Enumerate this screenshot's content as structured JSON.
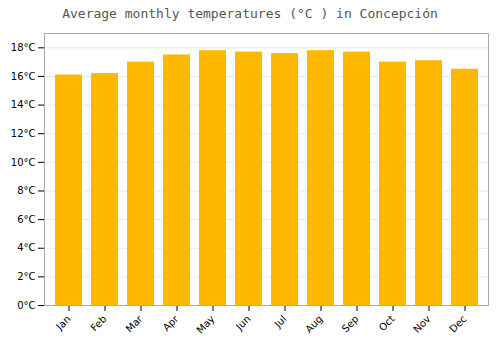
{
  "chart_data": {
    "type": "bar",
    "title": "Average monthly temperatures (°C ) in Concepción",
    "categories": [
      "Jan",
      "Feb",
      "Mar",
      "Apr",
      "May",
      "Jun",
      "Jul",
      "Aug",
      "Sep",
      "Oct",
      "Nov",
      "Dec"
    ],
    "values": [
      16.1,
      16.2,
      17.0,
      17.5,
      17.8,
      17.7,
      17.6,
      17.8,
      17.7,
      17.0,
      17.1,
      16.5
    ],
    "color": "#FFB800",
    "ylim": [
      0,
      19
    ],
    "yticks": [
      {
        "value": 0,
        "label": "0°C"
      },
      {
        "value": 2,
        "label": "2°C"
      },
      {
        "value": 4,
        "label": "4°C"
      },
      {
        "value": 6,
        "label": "6°C"
      },
      {
        "value": 8,
        "label": "8°C"
      },
      {
        "value": 10,
        "label": "10°C"
      },
      {
        "value": 12,
        "label": "12°C"
      },
      {
        "value": 14,
        "label": "14°C"
      },
      {
        "value": 16,
        "label": "16°C"
      },
      {
        "value": 18,
        "label": "18°C"
      }
    ],
    "grid": true
  }
}
